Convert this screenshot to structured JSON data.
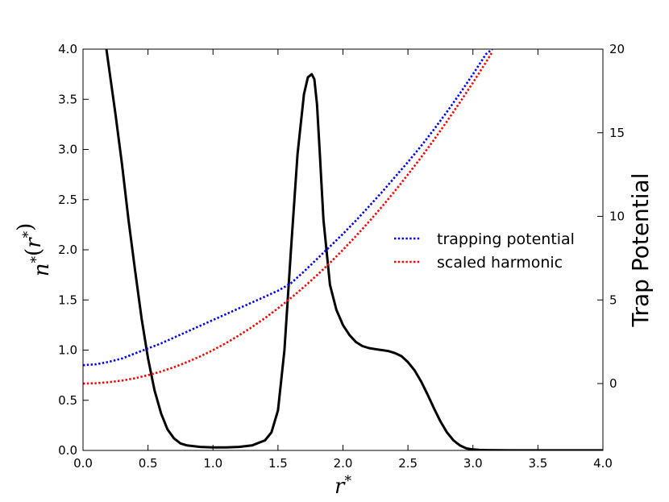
{
  "chart_data": {
    "type": "line",
    "title": "",
    "xlabel": "r*",
    "ylabel_left": "n*(r*)",
    "ylabel_right": "Trap Potential",
    "xlim": [
      0.0,
      4.0
    ],
    "ylim_left": [
      0.0,
      4.0
    ],
    "ylim_right": [
      -4.0,
      20.0
    ],
    "x_ticks": [
      "0.0",
      "0.5",
      "1.0",
      "1.5",
      "2.0",
      "2.5",
      "3.0",
      "3.5",
      "4.0"
    ],
    "y_ticks_left": [
      "0.0",
      "0.5",
      "1.0",
      "1.5",
      "2.0",
      "2.5",
      "3.0",
      "3.5",
      "4.0"
    ],
    "y_ticks_right": [
      "0",
      "5",
      "10",
      "15",
      "20"
    ],
    "grid": false,
    "legend_position": "center-right",
    "legend": [
      {
        "label": "trapping potential",
        "color": "#0000ff",
        "style": "dotted"
      },
      {
        "label": "scaled harmonic",
        "color": "#ff0000",
        "style": "dotted"
      }
    ],
    "series": [
      {
        "axis": "left",
        "color": "#000000",
        "style": "solid",
        "x": [
          0.18,
          0.25,
          0.3,
          0.35,
          0.4,
          0.45,
          0.5,
          0.55,
          0.6,
          0.65,
          0.7,
          0.75,
          0.8,
          0.9,
          1.0,
          1.1,
          1.2,
          1.3,
          1.4,
          1.45,
          1.5,
          1.55,
          1.6,
          1.65,
          1.7,
          1.73,
          1.76,
          1.78,
          1.8,
          1.82,
          1.85,
          1.9,
          1.95,
          2.0,
          2.05,
          2.1,
          2.15,
          2.2,
          2.25,
          2.3,
          2.35,
          2.4,
          2.45,
          2.5,
          2.55,
          2.6,
          2.65,
          2.7,
          2.75,
          2.8,
          2.85,
          2.9,
          2.95,
          3.0,
          3.05,
          3.1,
          3.2,
          3.3,
          3.5,
          4.0
        ],
        "y": [
          4.0,
          3.35,
          2.85,
          2.3,
          1.8,
          1.32,
          0.92,
          0.6,
          0.37,
          0.21,
          0.12,
          0.07,
          0.05,
          0.035,
          0.03,
          0.03,
          0.035,
          0.05,
          0.1,
          0.18,
          0.4,
          1.0,
          2.0,
          2.95,
          3.55,
          3.72,
          3.75,
          3.7,
          3.45,
          3.0,
          2.3,
          1.65,
          1.4,
          1.25,
          1.15,
          1.08,
          1.04,
          1.02,
          1.01,
          1.0,
          0.99,
          0.97,
          0.94,
          0.88,
          0.8,
          0.69,
          0.56,
          0.42,
          0.29,
          0.18,
          0.1,
          0.05,
          0.02,
          0.01,
          0.005,
          0.003,
          0.002,
          0.001,
          0.001,
          0.001
        ]
      },
      {
        "name": "trapping potential",
        "axis": "right",
        "color": "#0000ff",
        "style": "dotted",
        "x": [
          0.0,
          0.1,
          0.2,
          0.3,
          0.4,
          0.5,
          0.6,
          0.7,
          0.8,
          0.9,
          1.0,
          1.1,
          1.2,
          1.3,
          1.4,
          1.5,
          1.6,
          1.7,
          1.8,
          1.9,
          2.0,
          2.1,
          2.2,
          2.3,
          2.4,
          2.5,
          2.6,
          2.7,
          2.8,
          2.9,
          3.0,
          3.1,
          3.15
        ],
        "y": [
          1.1,
          1.15,
          1.3,
          1.5,
          1.8,
          2.1,
          2.4,
          2.75,
          3.1,
          3.45,
          3.8,
          4.15,
          4.5,
          4.85,
          5.2,
          5.55,
          6.0,
          6.7,
          7.45,
          8.2,
          8.95,
          9.75,
          10.6,
          11.45,
          12.35,
          13.25,
          14.2,
          15.2,
          16.25,
          17.35,
          18.5,
          19.7,
          20.0
        ]
      },
      {
        "name": "scaled harmonic",
        "axis": "right",
        "color": "#ff0000",
        "style": "dotted",
        "x": [
          0.0,
          0.1,
          0.2,
          0.3,
          0.4,
          0.5,
          0.6,
          0.7,
          0.8,
          0.9,
          1.0,
          1.1,
          1.2,
          1.3,
          1.4,
          1.5,
          1.6,
          1.7,
          1.8,
          1.9,
          2.0,
          2.1,
          2.2,
          2.3,
          2.4,
          2.5,
          2.6,
          2.7,
          2.8,
          2.9,
          3.0,
          3.1,
          3.15
        ],
        "y": [
          0.0,
          0.02,
          0.08,
          0.18,
          0.32,
          0.5,
          0.72,
          0.98,
          1.28,
          1.62,
          2.0,
          2.42,
          2.88,
          3.38,
          3.92,
          4.5,
          5.12,
          5.78,
          6.48,
          7.22,
          8.0,
          8.82,
          9.68,
          10.58,
          11.52,
          12.5,
          13.52,
          14.58,
          15.68,
          16.82,
          18.0,
          19.22,
          19.84
        ]
      }
    ]
  }
}
